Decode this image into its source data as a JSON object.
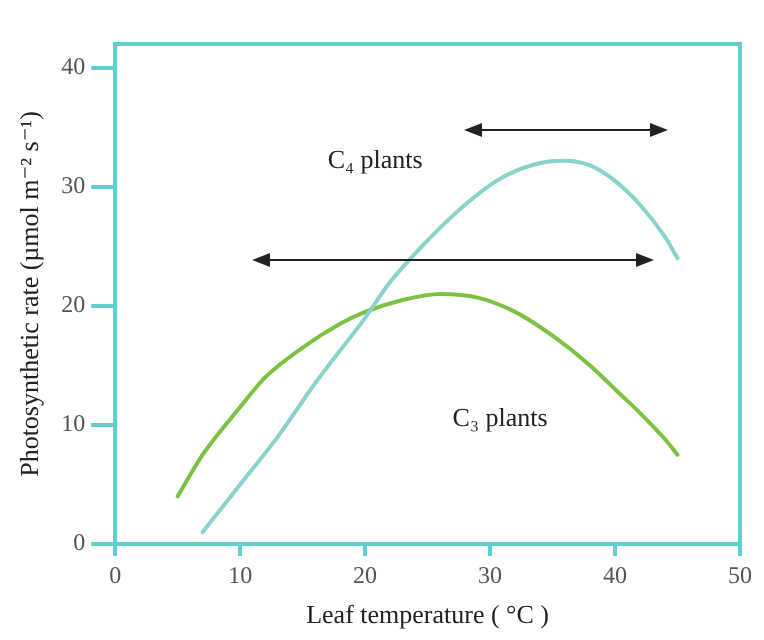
{
  "chart_data": {
    "type": "line",
    "xlabel": "Leaf temperature ( °C )",
    "ylabel": "Photosynthetic rate (µmol m⁻² s⁻¹)",
    "xlim": [
      0,
      50
    ],
    "ylim": [
      0,
      42
    ],
    "xticks": [
      0,
      10,
      20,
      30,
      40,
      50
    ],
    "yticks": [
      0,
      10,
      20,
      30,
      40
    ],
    "grid": false,
    "legend": false,
    "marker": "none",
    "line_style": "solid",
    "series": [
      {
        "name": "C₄ plants",
        "color": "#88d4cc",
        "x": [
          7,
          10,
          13,
          16,
          20,
          22,
          25,
          28,
          31,
          34,
          36,
          38,
          40,
          42,
          44,
          45
        ],
        "values": [
          1,
          5,
          9,
          13.5,
          19,
          22,
          25.5,
          28.5,
          30.8,
          32,
          32.2,
          31.8,
          30.5,
          28.5,
          25.8,
          24
        ]
      },
      {
        "name": "C₃ plants",
        "color": "#7cc242",
        "x": [
          5,
          7,
          10,
          12,
          15,
          18,
          20,
          23,
          26,
          29,
          32,
          35,
          38,
          40,
          42,
          44,
          45
        ],
        "values": [
          4,
          7.5,
          11.5,
          14,
          16.5,
          18.5,
          19.5,
          20.5,
          21,
          20.7,
          19.5,
          17.5,
          15,
          13,
          11,
          8.8,
          7.5
        ]
      }
    ]
  }
}
